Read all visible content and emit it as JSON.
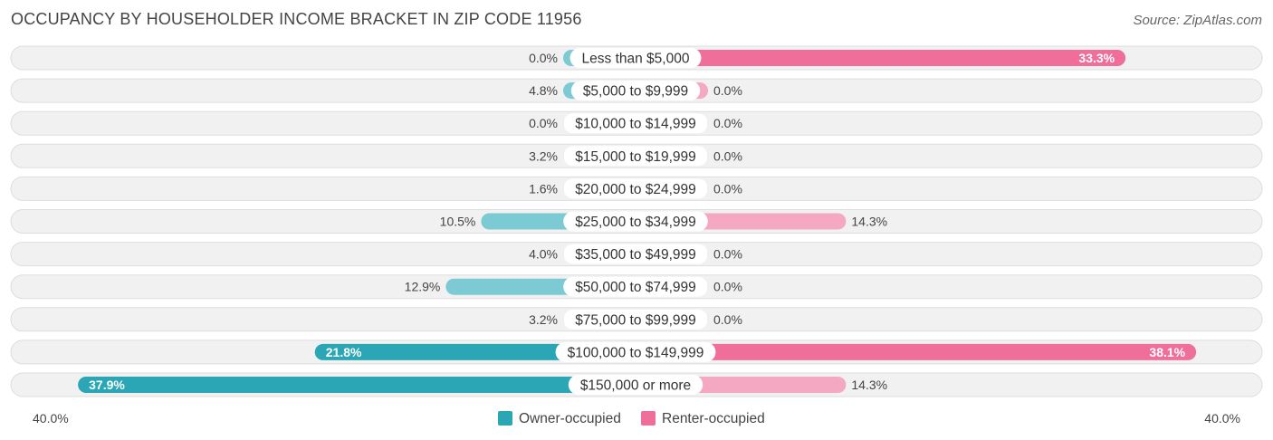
{
  "header": {
    "title": "OCCUPANCY BY HOUSEHOLDER INCOME BRACKET IN ZIP CODE 11956",
    "source": "Source: ZipAtlas.com"
  },
  "colors": {
    "owner": "#7ccad4",
    "owner_strong": "#2aa6b4",
    "renter": "#f4a8c2",
    "renter_strong": "#ef6f9a",
    "row_bg": "#f1f1f1",
    "row_border": "#dddddd"
  },
  "chart_data": {
    "type": "bar",
    "orientation": "horizontal-diverging",
    "categories": [
      "Less than $5,000",
      "$5,000 to $9,999",
      "$10,000 to $14,999",
      "$15,000 to $19,999",
      "$20,000 to $24,999",
      "$25,000 to $34,999",
      "$35,000 to $49,999",
      "$50,000 to $74,999",
      "$75,000 to $99,999",
      "$100,000 to $149,999",
      "$150,000 or more"
    ],
    "series": [
      {
        "name": "Owner-occupied",
        "values": [
          0.0,
          4.8,
          0.0,
          3.2,
          1.6,
          10.5,
          4.0,
          12.9,
          3.2,
          21.8,
          37.9
        ],
        "labels": [
          "0.0%",
          "4.8%",
          "0.0%",
          "3.2%",
          "1.6%",
          "10.5%",
          "4.0%",
          "12.9%",
          "3.2%",
          "21.8%",
          "37.9%"
        ]
      },
      {
        "name": "Renter-occupied",
        "values": [
          33.3,
          0.0,
          0.0,
          0.0,
          0.0,
          14.3,
          0.0,
          0.0,
          0.0,
          38.1,
          14.3
        ],
        "labels": [
          "33.3%",
          "0.0%",
          "0.0%",
          "0.0%",
          "0.0%",
          "14.3%",
          "0.0%",
          "0.0%",
          "0.0%",
          "38.1%",
          "14.3%"
        ]
      }
    ],
    "xlim": [
      -40.0,
      40.0
    ],
    "axis_labels": {
      "left": "40.0%",
      "right": "40.0%"
    },
    "legend": {
      "placement": "bottom-center",
      "entries": [
        "Owner-occupied",
        "Renter-occupied"
      ]
    },
    "unit": "%"
  }
}
